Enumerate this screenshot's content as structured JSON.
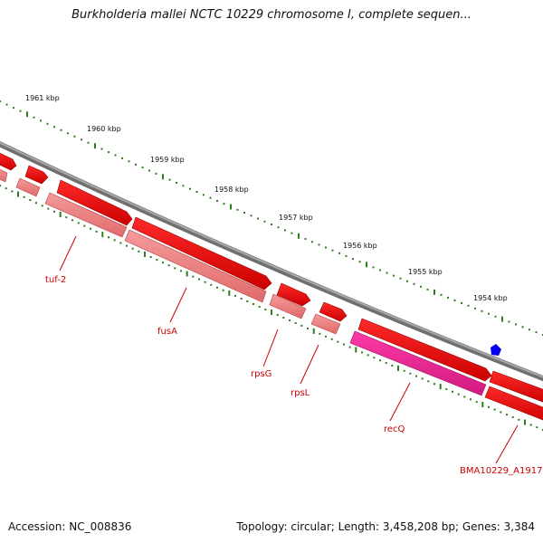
{
  "title": "Burkholderia mallei NCTC 10229 chromosome I, complete sequen...",
  "footer": {
    "accession": "Accession: NC_008836",
    "stats": "Topology: circular; Length: 3,458,208 bp; Genes: 3,384"
  },
  "ruler": {
    "tick_labels": [
      "1961 kbp",
      "1960 kbp",
      "1959 kbp",
      "1958 kbp",
      "1957 kbp",
      "1956 kbp",
      "1955 kbp",
      "1954 kbp"
    ]
  },
  "genes": [
    {
      "name": "tuf-2"
    },
    {
      "name": "fusA"
    },
    {
      "name": "rpsG"
    },
    {
      "name": "rpsL"
    },
    {
      "name": "recQ"
    },
    {
      "name": "BMA10229_A1917"
    }
  ],
  "colors": {
    "cds_forward": "#ee0000",
    "cds_reverse": "#ee7a7a",
    "highlight": "#e8228f",
    "backbone": "#888888",
    "ticks": "#2e7d1e",
    "label": "#cc0000",
    "marker": "#0000ee"
  },
  "marker_icon": "blue-pentagon-marker"
}
